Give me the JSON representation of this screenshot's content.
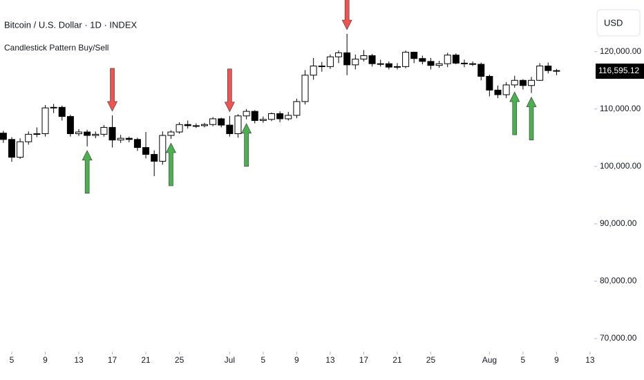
{
  "chart_data": {
    "type": "candlestick",
    "title": "Bitcoin / U.S. Dollar · 1D · INDEX",
    "subtitle": "Candlestick Pattern Buy/Sell",
    "currency": "USD",
    "last_price": {
      "value": 116595.12,
      "label": "116,595.12"
    },
    "up_color": "#ffffff",
    "down_color": "#000000",
    "buy_color": "#4caf50",
    "sell_color": "#f05350",
    "x": [
      4,
      5,
      6,
      7,
      8,
      9,
      10,
      11,
      12,
      13,
      14,
      15,
      16,
      17,
      18,
      19,
      20,
      21,
      22,
      23,
      24,
      25,
      26,
      27,
      28,
      29,
      30,
      31,
      32,
      33,
      34,
      35,
      36,
      37,
      38,
      39,
      40,
      41,
      42,
      43,
      44,
      45,
      46,
      47,
      48,
      49,
      50,
      51,
      52,
      53,
      54,
      55,
      56,
      57,
      58,
      59,
      60,
      61,
      62,
      63,
      64,
      65,
      66,
      67,
      68,
      69,
      70
    ],
    "open": [
      105800,
      104700,
      101600,
      104300,
      105600,
      105700,
      110200,
      110300,
      108700,
      105700,
      106000,
      105400,
      105600,
      106800,
      104600,
      104900,
      104700,
      103300,
      102100,
      100900,
      105400,
      106000,
      107300,
      107100,
      107100,
      107300,
      108300,
      107200,
      105700,
      108800,
      109600,
      108000,
      108200,
      109200,
      108300,
      108900,
      111300,
      115900,
      117500,
      117400,
      119100,
      119800,
      117700,
      118700,
      119300,
      117900,
      117900,
      117300,
      117400,
      119900,
      118800,
      118300,
      117600,
      117900,
      119400,
      118000,
      117900,
      117800,
      115700,
      113300,
      112500,
      114200,
      115000,
      114100,
      115000,
      117500,
      116700
    ],
    "high": [
      106200,
      105100,
      104900,
      106100,
      106800,
      110700,
      110900,
      110600,
      109000,
      106500,
      106400,
      106100,
      107200,
      108900,
      105500,
      105200,
      105000,
      106000,
      102800,
      106100,
      106300,
      107700,
      108000,
      107500,
      107600,
      108600,
      108500,
      108800,
      109100,
      110000,
      109800,
      108700,
      109400,
      109600,
      109500,
      111800,
      116800,
      118900,
      118200,
      119500,
      120200,
      123100,
      119500,
      120300,
      119600,
      118600,
      118300,
      118000,
      120200,
      120000,
      119300,
      118900,
      118400,
      119800,
      119700,
      118600,
      118300,
      118100,
      116000,
      114100,
      114700,
      115800,
      115200,
      115600,
      118000,
      118100,
      117000
    ],
    "low": [
      104100,
      100800,
      101300,
      103800,
      105100,
      105200,
      109300,
      108000,
      105200,
      105300,
      103500,
      104900,
      105200,
      103300,
      104100,
      104200,
      102700,
      101400,
      98300,
      100300,
      104800,
      105700,
      106600,
      106700,
      106800,
      107000,
      106800,
      105200,
      105000,
      108200,
      107500,
      107600,
      107900,
      107700,
      108000,
      108400,
      110800,
      115100,
      116500,
      117000,
      118000,
      115900,
      116900,
      118300,
      117400,
      117400,
      116900,
      116900,
      117100,
      118000,
      117800,
      116900,
      117200,
      117300,
      117800,
      117300,
      117500,
      115000,
      112200,
      111900,
      111900,
      113700,
      113400,
      112800,
      114900,
      116200,
      115900
    ],
    "close": [
      104700,
      101600,
      104300,
      105600,
      105700,
      110200,
      110300,
      108700,
      105700,
      106000,
      105400,
      105600,
      106800,
      104600,
      104900,
      104700,
      103300,
      102100,
      100900,
      105400,
      106000,
      107300,
      107100,
      107100,
      107300,
      108300,
      107200,
      105700,
      108800,
      109600,
      108000,
      108200,
      109200,
      108300,
      108900,
      111300,
      115900,
      117500,
      117400,
      119100,
      119800,
      117700,
      118700,
      119300,
      117900,
      117900,
      117300,
      117400,
      119900,
      118800,
      118300,
      117600,
      117900,
      119400,
      118000,
      117900,
      117800,
      115700,
      113300,
      112500,
      114200,
      115000,
      114100,
      115000,
      117500,
      116700,
      116595.12
    ],
    "buy_signals": [
      14,
      24,
      33,
      65,
      67
    ],
    "sell_signals": [
      17,
      31,
      45
    ],
    "xlim": [
      3.6,
      74.5
    ],
    "xticks": [
      {
        "value": 5,
        "label": "5"
      },
      {
        "value": 9,
        "label": "9"
      },
      {
        "value": 13,
        "label": "13"
      },
      {
        "value": 17,
        "label": "17"
      },
      {
        "value": 21,
        "label": "21"
      },
      {
        "value": 25,
        "label": "25"
      },
      {
        "value": 31,
        "label": "Jul"
      },
      {
        "value": 35,
        "label": "5"
      },
      {
        "value": 39,
        "label": "9"
      },
      {
        "value": 43,
        "label": "13"
      },
      {
        "value": 47,
        "label": "17"
      },
      {
        "value": 51,
        "label": "21"
      },
      {
        "value": 55,
        "label": "25"
      },
      {
        "value": 62,
        "label": "Aug"
      },
      {
        "value": 66,
        "label": "5"
      },
      {
        "value": 70,
        "label": "9"
      },
      {
        "value": 74,
        "label": "13"
      }
    ],
    "ylim": [
      68200,
      129000
    ],
    "yticks": [
      {
        "value": 70000,
        "label": "70,000.00"
      },
      {
        "value": 80000,
        "label": "80,000.00"
      },
      {
        "value": 90000,
        "label": "90,000.00"
      },
      {
        "value": 100000,
        "label": "100,000.00"
      },
      {
        "value": 110000,
        "label": "110,000.00"
      },
      {
        "value": 120000,
        "label": "120,000.00"
      }
    ]
  }
}
